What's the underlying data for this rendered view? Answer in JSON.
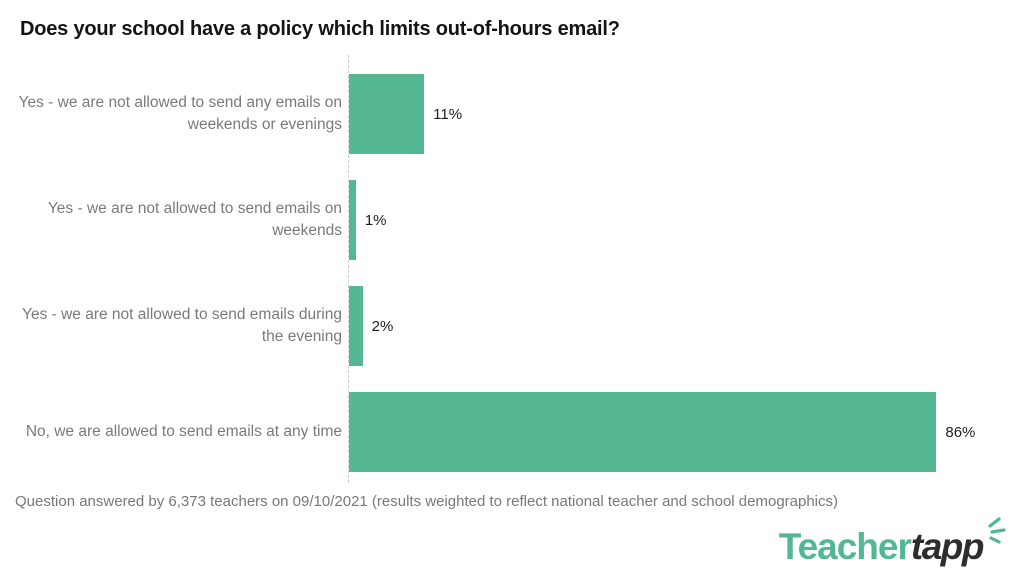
{
  "title": "Does your school have a policy which limits out-of-hours email?",
  "chart_data": {
    "type": "bar",
    "orientation": "horizontal",
    "title": "Does your school have a policy which limits out-of-hours email?",
    "categories": [
      "Yes - we are not allowed to send any emails on weekends or evenings",
      "Yes - we are not allowed to send emails on weekends",
      "Yes - we are not allowed to send emails during the evening",
      "No, we are allowed to send emails at any time"
    ],
    "values": [
      11,
      1,
      2,
      86
    ],
    "value_labels": [
      "11%",
      "1%",
      "2%",
      "86%"
    ],
    "xlabel": "",
    "ylabel": "",
    "xlim": [
      0,
      100
    ],
    "grid": false,
    "baseline_style": "dashed",
    "bar_color": "#55B892",
    "label_color": "#797a7d",
    "value_label_color": "#1e1e1e",
    "legend": "none"
  },
  "footer": {
    "note": "Question answered by 6,373 teachers on 09/10/2021 (results weighted to reflect national teacher and school demographics)"
  },
  "logo": {
    "part1": "Teacher",
    "part2": "tapp",
    "accent_color": "#52B892",
    "text_color": "#2d2d2d"
  }
}
